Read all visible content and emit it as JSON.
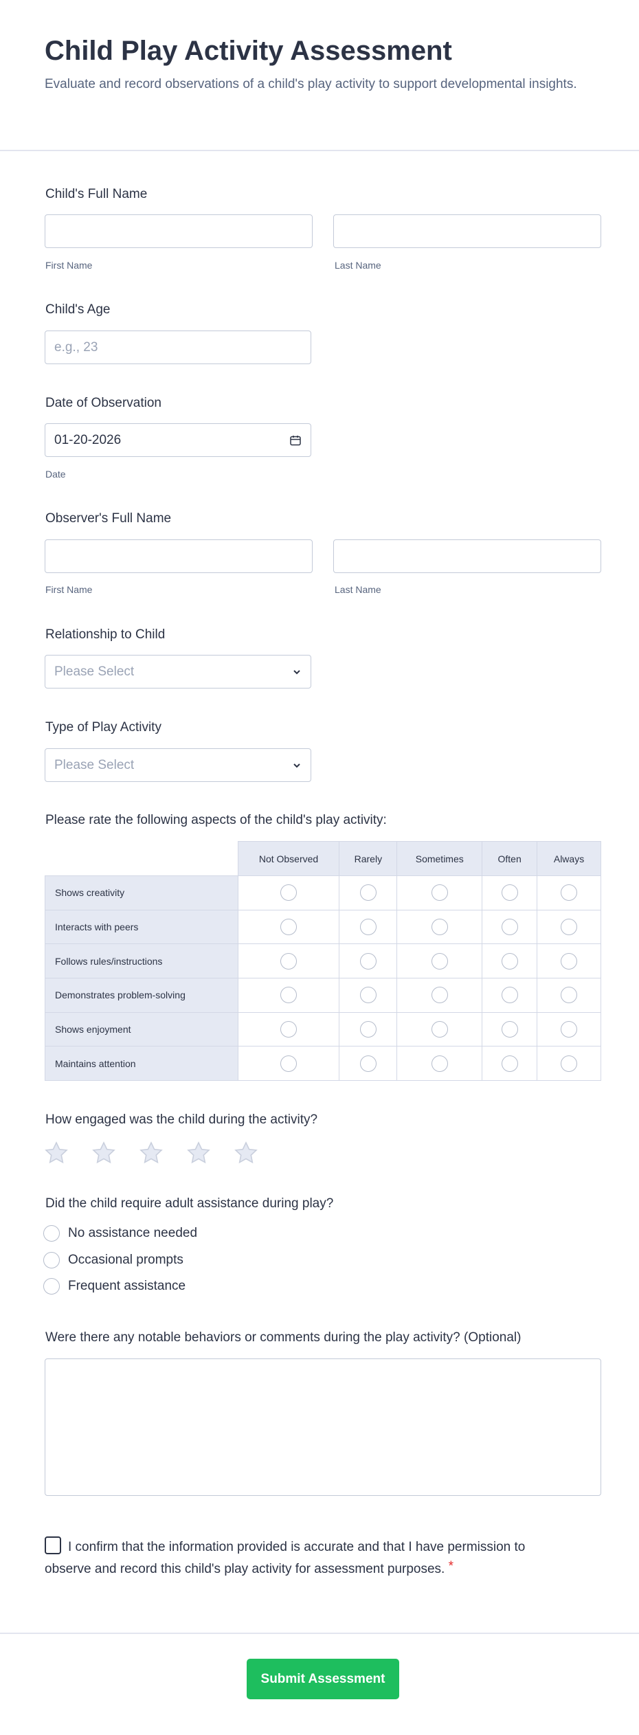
{
  "header": {
    "title": "Child Play Activity Assessment",
    "description": "Evaluate and record observations of a child's play activity to support developmental insights."
  },
  "child_name": {
    "label": "Child's Full Name",
    "first": "First Name",
    "last": "Last Name"
  },
  "child_age": {
    "label": "Child's Age",
    "placeholder": "e.g., 23"
  },
  "date": {
    "label": "Date of Observation",
    "value": "01-20-2026",
    "sublabel": "Date",
    "icon": "calendar-icon"
  },
  "observer_name": {
    "label": "Observer's Full Name",
    "first": "First Name",
    "last": "Last Name"
  },
  "relationship": {
    "label": "Relationship to Child",
    "placeholder": "Please Select"
  },
  "play_type": {
    "label": "Type of Play Activity",
    "placeholder": "Please Select"
  },
  "matrix": {
    "label": "Please rate the following aspects of the child's play activity:",
    "columns": [
      "Not Observed",
      "Rarely",
      "Sometimes",
      "Often",
      "Always"
    ],
    "rows": [
      "Shows creativity",
      "Interacts with peers",
      "Follows rules/instructions",
      "Demonstrates problem-solving",
      "Shows enjoyment",
      "Maintains attention"
    ]
  },
  "engagement": {
    "label": "How engaged was the child during the activity?",
    "max_stars": 5,
    "rating": 0
  },
  "assistance": {
    "label": "Did the child require adult assistance during play?",
    "options": [
      "No assistance needed",
      "Occasional prompts",
      "Frequent assistance"
    ]
  },
  "comments": {
    "label": "Were there any notable behaviors or comments during the play activity? (Optional)"
  },
  "consent": {
    "text": "I confirm that the information provided is accurate and that I have permission to observe and record this child's play activity for assessment purposes.",
    "required_mark": "*",
    "checked": false
  },
  "submit": {
    "label": "Submit Assessment",
    "color": "#1ebe5e"
  }
}
